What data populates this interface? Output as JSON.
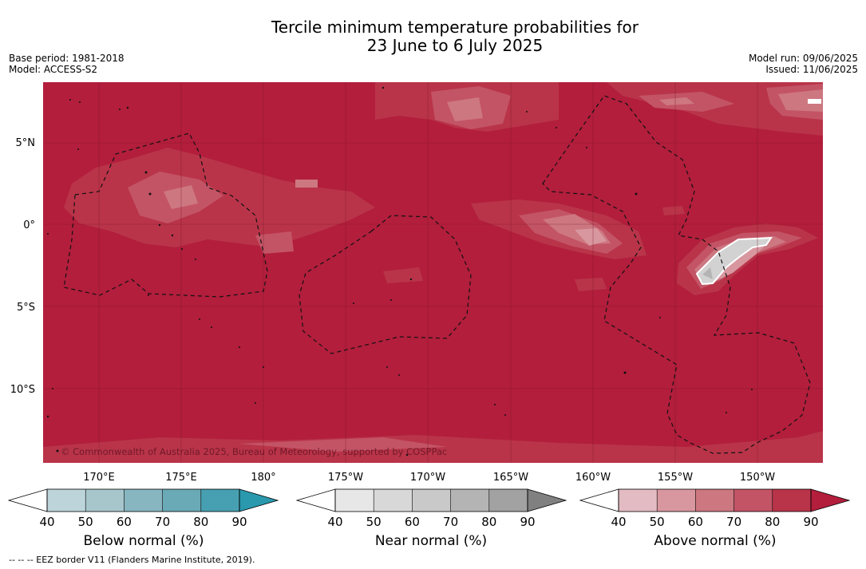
{
  "header": {
    "title_line1": "Tercile minimum temperature probabilities for",
    "title_line2": "23 June to 6 July 2025",
    "base_period": "Base period: 1981-2018",
    "model": "Model: ACCESS-S2",
    "model_run": "Model run: 09/06/2025",
    "issued": "Issued: 11/06/2025"
  },
  "map": {
    "lat_labels": [
      "5°N",
      "0°",
      "5°S",
      "10°S"
    ],
    "lon_labels": [
      "170°E",
      "175°E",
      "180°",
      "175°W",
      "170°W",
      "165°W",
      "160°W",
      "155°W",
      "150°W"
    ],
    "background_color": "#b21e3c",
    "copyright": "© Commonwealth of Australia 2025, Bureau of Meteorology, supported by COSPPac"
  },
  "colorbars": [
    {
      "name": "below",
      "label": "Below normal (%)",
      "ticks": [
        "40",
        "50",
        "60",
        "70",
        "80",
        "90"
      ],
      "colors": [
        "#ffffff",
        "#bcd4da",
        "#a6c6cc",
        "#87b6c0",
        "#6aaab7",
        "#47a0b1",
        "#2a98ad"
      ]
    },
    {
      "name": "near",
      "label": "Near normal (%)",
      "ticks": [
        "40",
        "50",
        "60",
        "70",
        "80",
        "90"
      ],
      "colors": [
        "#ffffff",
        "#e7e7e7",
        "#d8d8d8",
        "#c9c9c9",
        "#b4b4b4",
        "#a2a2a2",
        "#808080"
      ]
    },
    {
      "name": "above",
      "label": "Above normal (%)",
      "ticks": [
        "40",
        "50",
        "60",
        "70",
        "80",
        "90"
      ],
      "colors": [
        "#ffffff",
        "#e3bbc2",
        "#d8979f",
        "#cd7781",
        "#c35466",
        "#b93449",
        "#b21e3c"
      ]
    }
  ],
  "footnote": "-- -- -- EEZ border V11 (Flanders Marine Institute, 2019)."
}
